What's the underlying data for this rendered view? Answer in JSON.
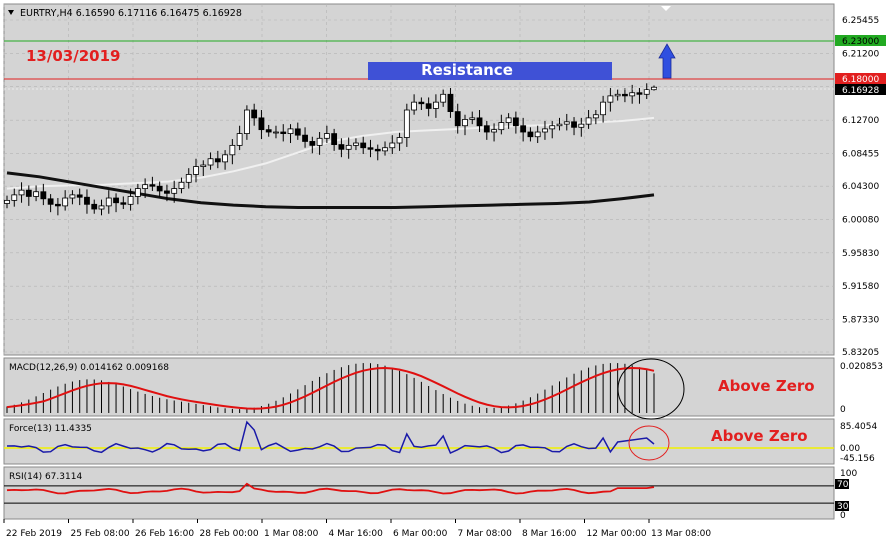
{
  "symbol_line": "EURTRY,H4  6.16590 6.17116 6.16475 6.16928",
  "date_annotation": "13/03/2019",
  "resistance_label": "Resistance",
  "price_axis": {
    "ticks": [
      "6.25455",
      "6.21200",
      "6.17000",
      "6.12700",
      "6.08455",
      "6.04300",
      "6.00080",
      "5.95830",
      "5.91580",
      "5.87330",
      "5.83205"
    ],
    "target_price": "6.23000",
    "resistance_price": "6.18000",
    "current_price": "6.16928"
  },
  "time_axis": [
    "22 Feb 2019",
    "25 Feb 08:00",
    "26 Feb 16:00",
    "28 Feb 00:00",
    "1 Mar 08:00",
    "4 Mar 16:00",
    "6 Mar 00:00",
    "7 Mar 08:00",
    "8 Mar 16:00",
    "12 Mar 00:00",
    "13 Mar 08:00"
  ],
  "macd": {
    "label": "MACD(12,26,9) 0.014162 0.009168",
    "axis_top": "0.020853",
    "axis_zero": "0",
    "annotation": "Above Zero"
  },
  "force": {
    "label": "Force(13) 11.4335",
    "axis_top": "85.4054",
    "axis_mid": "0.00",
    "axis_bottom": "-45.156",
    "annotation": "Above Zero"
  },
  "rsi": {
    "label": "RSI(14) 67.3114",
    "axis_top": "100",
    "level_high": "70",
    "level_low": "30",
    "axis_bottom": "0"
  },
  "colors": {
    "background": "#d4d4d4",
    "grid": "#b4b4b4",
    "annotation_red": "#e21f1f",
    "resistance_box": "#3f51d6",
    "target_line": "#22aa22",
    "resistance_line": "#e21f1f",
    "arrow": "#2f4fe0",
    "ma_fast": "#f0f0f0",
    "ma_slow": "#111111",
    "indicator_line": "#e01010",
    "force_line": "#1a1aa8",
    "force_zero": "#f2f200"
  },
  "chart_data": {
    "type": "candlestick",
    "symbol": "EURTRY",
    "timeframe": "H4",
    "ylim": [
      5.83205,
      6.27
    ],
    "last_ohlc": {
      "open": 6.1659,
      "high": 6.17116,
      "low": 6.16475,
      "close": 6.16928
    },
    "closes": [
      6.025,
      6.032,
      6.038,
      6.03,
      6.036,
      6.027,
      6.02,
      6.018,
      6.028,
      6.032,
      6.029,
      6.02,
      6.014,
      6.018,
      6.028,
      6.022,
      6.02,
      6.03,
      6.04,
      6.045,
      6.043,
      6.037,
      6.034,
      6.04,
      6.048,
      6.058,
      6.068,
      6.07,
      6.078,
      6.074,
      6.083,
      6.095,
      6.11,
      6.14,
      6.13,
      6.115,
      6.112,
      6.112,
      6.11,
      6.116,
      6.108,
      6.1,
      6.095,
      6.104,
      6.11,
      6.096,
      6.09,
      6.095,
      6.098,
      6.092,
      6.09,
      6.088,
      6.092,
      6.098,
      6.105,
      6.14,
      6.15,
      6.148,
      6.142,
      6.15,
      6.16,
      6.138,
      6.12,
      6.128,
      6.13,
      6.12,
      6.112,
      6.115,
      6.124,
      6.13,
      6.12,
      6.112,
      6.106,
      6.112,
      6.116,
      6.12,
      6.122,
      6.125,
      6.118,
      6.122,
      6.13,
      6.134,
      6.15,
      6.158,
      6.16,
      6.158,
      6.162,
      6.16,
      6.166,
      6.169
    ],
    "moving_averages": [
      {
        "values": [
          6.04,
          6.043,
          6.044,
          6.045,
          6.047,
          6.049,
          6.054,
          6.062,
          6.072,
          6.086,
          6.1,
          6.107,
          6.112,
          6.114,
          6.116,
          6.118,
          6.12,
          6.121,
          6.124,
          6.126,
          6.13
        ]
      },
      {
        "values": [
          6.06,
          6.055,
          6.048,
          6.041,
          6.034,
          6.027,
          6.022,
          6.019,
          6.017,
          6.016,
          6.016,
          6.016,
          6.016,
          6.017,
          6.018,
          6.019,
          6.02,
          6.021,
          6.023,
          6.027,
          6.032
        ]
      }
    ],
    "levels": {
      "resistance": 6.18,
      "target": 6.23,
      "current": 6.16928
    }
  }
}
